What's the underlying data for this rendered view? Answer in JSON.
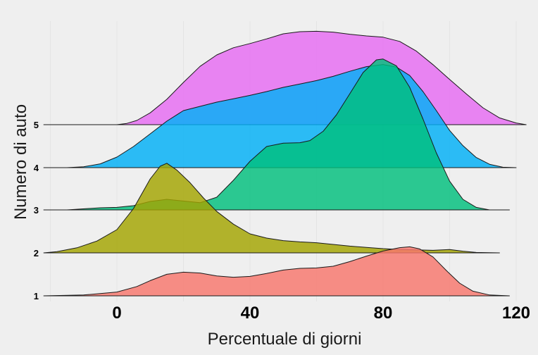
{
  "chart_data": {
    "type": "ridgeline",
    "title": "",
    "xlabel": "Percentuale di giorni",
    "ylabel": "Numero di auto",
    "xlim": [
      -22,
      123
    ],
    "x_ticks": [
      0,
      40,
      80,
      120
    ],
    "y_categories": [
      "1",
      "2",
      "3",
      "4",
      "5"
    ],
    "grid": "vertical, major and minor",
    "series": [
      {
        "category": "1",
        "color": "#f8766d",
        "points": [
          [
            -22,
            0
          ],
          [
            -10,
            0.2
          ],
          [
            0,
            0.9
          ],
          [
            6,
            2.2
          ],
          [
            10,
            3.6
          ],
          [
            15,
            5.1
          ],
          [
            20,
            5.6
          ],
          [
            25,
            5.4
          ],
          [
            30,
            4.7
          ],
          [
            35,
            4.4
          ],
          [
            40,
            4.6
          ],
          [
            45,
            5.3
          ],
          [
            50,
            6.1
          ],
          [
            55,
            6.5
          ],
          [
            60,
            6.6
          ],
          [
            65,
            7.0
          ],
          [
            70,
            8.1
          ],
          [
            75,
            9.4
          ],
          [
            80,
            10.6
          ],
          [
            85,
            11.4
          ],
          [
            88,
            11.6
          ],
          [
            91,
            11.1
          ],
          [
            95,
            9.2
          ],
          [
            99,
            6.0
          ],
          [
            103,
            3.0
          ],
          [
            107,
            1.1
          ],
          [
            112,
            0.2
          ],
          [
            118,
            0
          ]
        ]
      },
      {
        "category": "2",
        "color": "#a3a500",
        "points": [
          [
            -22,
            0
          ],
          [
            -18,
            0.3
          ],
          [
            -12,
            1.2
          ],
          [
            -6,
            2.8
          ],
          [
            0,
            5.5
          ],
          [
            5,
            10.5
          ],
          [
            10,
            17.5
          ],
          [
            13,
            20.5
          ],
          [
            15,
            21.2
          ],
          [
            18,
            19.6
          ],
          [
            22,
            16.6
          ],
          [
            26,
            13.0
          ],
          [
            30,
            9.8
          ],
          [
            35,
            6.8
          ],
          [
            40,
            4.5
          ],
          [
            45,
            3.5
          ],
          [
            50,
            2.9
          ],
          [
            55,
            2.6
          ],
          [
            60,
            2.4
          ],
          [
            65,
            2.0
          ],
          [
            70,
            1.6
          ],
          [
            75,
            1.3
          ],
          [
            80,
            1.0
          ],
          [
            85,
            0.8
          ],
          [
            90,
            0.7
          ],
          [
            95,
            0.6
          ],
          [
            100,
            0.8
          ],
          [
            104,
            0.4
          ],
          [
            108,
            0.1
          ],
          [
            115,
            0
          ]
        ]
      },
      {
        "category": "3",
        "color": "#00bf7d",
        "points": [
          [
            -22,
            0
          ],
          [
            -15,
            0
          ],
          [
            -5,
            0.5
          ],
          [
            0,
            0.6
          ],
          [
            5,
            1.0
          ],
          [
            10,
            2.0
          ],
          [
            15,
            2.5
          ],
          [
            20,
            2.1
          ],
          [
            25,
            1.7
          ],
          [
            30,
            3.0
          ],
          [
            35,
            7.0
          ],
          [
            40,
            11.5
          ],
          [
            45,
            15.0
          ],
          [
            50,
            15.8
          ],
          [
            55,
            15.9
          ],
          [
            58,
            16.4
          ],
          [
            62,
            18.6
          ],
          [
            66,
            22.5
          ],
          [
            70,
            27.5
          ],
          [
            74,
            32.5
          ],
          [
            78,
            35.5
          ],
          [
            80,
            35.7
          ],
          [
            84,
            34.1
          ],
          [
            88,
            29.0
          ],
          [
            92,
            21.5
          ],
          [
            96,
            13.5
          ],
          [
            100,
            6.8
          ],
          [
            104,
            2.5
          ],
          [
            108,
            0.6
          ],
          [
            112,
            0
          ],
          [
            118,
            0
          ]
        ]
      },
      {
        "category": "4",
        "color": "#00b0f6",
        "points": [
          [
            -22,
            0
          ],
          [
            -15,
            0
          ],
          [
            -10,
            0.2
          ],
          [
            -5,
            0.9
          ],
          [
            0,
            2.5
          ],
          [
            5,
            5.0
          ],
          [
            10,
            8.0
          ],
          [
            15,
            11.0
          ],
          [
            20,
            13.5
          ],
          [
            25,
            14.5
          ],
          [
            30,
            15.5
          ],
          [
            35,
            16.3
          ],
          [
            40,
            17.1
          ],
          [
            45,
            18.0
          ],
          [
            50,
            19.0
          ],
          [
            55,
            19.8
          ],
          [
            60,
            20.6
          ],
          [
            65,
            21.6
          ],
          [
            70,
            22.8
          ],
          [
            75,
            23.9
          ],
          [
            80,
            24.4
          ],
          [
            84,
            23.8
          ],
          [
            88,
            21.8
          ],
          [
            92,
            18.0
          ],
          [
            96,
            13.5
          ],
          [
            100,
            8.8
          ],
          [
            104,
            5.2
          ],
          [
            108,
            2.4
          ],
          [
            112,
            0.8
          ],
          [
            116,
            0.1
          ],
          [
            120,
            0
          ]
        ]
      },
      {
        "category": "5",
        "color": "#e76bf3",
        "points": [
          [
            -22,
            0
          ],
          [
            0,
            0
          ],
          [
            3,
            0.3
          ],
          [
            6,
            1.0
          ],
          [
            10,
            2.8
          ],
          [
            15,
            6.0
          ],
          [
            20,
            10.0
          ],
          [
            25,
            13.8
          ],
          [
            30,
            16.5
          ],
          [
            35,
            18.2
          ],
          [
            40,
            19.2
          ],
          [
            45,
            20.3
          ],
          [
            50,
            21.5
          ],
          [
            55,
            22.0
          ],
          [
            60,
            22.1
          ],
          [
            65,
            21.9
          ],
          [
            70,
            21.4
          ],
          [
            75,
            21.0
          ],
          [
            80,
            20.7
          ],
          [
            85,
            19.7
          ],
          [
            90,
            17.4
          ],
          [
            95,
            14.2
          ],
          [
            100,
            10.7
          ],
          [
            105,
            7.3
          ],
          [
            110,
            4.0
          ],
          [
            115,
            1.6
          ],
          [
            120,
            0.4
          ],
          [
            123,
            0
          ]
        ]
      }
    ]
  }
}
